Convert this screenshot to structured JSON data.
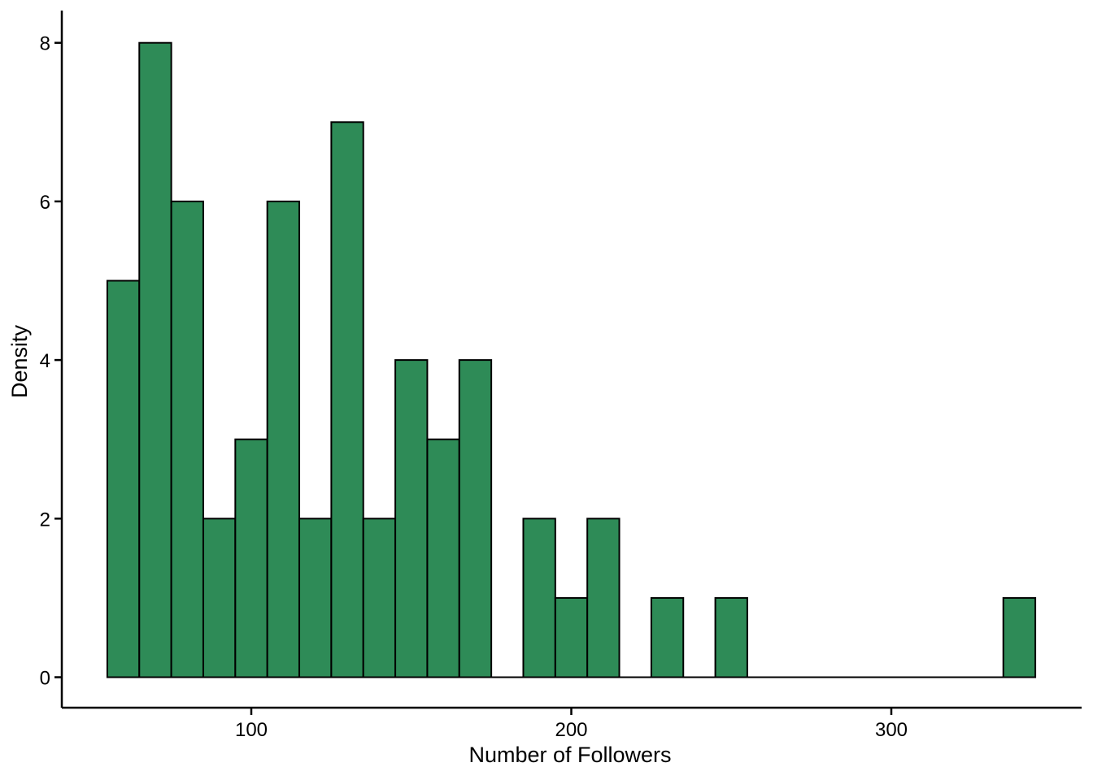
{
  "figure": {
    "background_color": "#ffffff"
  },
  "chart_data": {
    "type": "bar",
    "subtype": "histogram",
    "title": "",
    "xlabel": "Number of Followers",
    "ylabel": "Density",
    "bin_start": 55,
    "bin_width": 10,
    "bin_counts": [
      5,
      8,
      6,
      2,
      3,
      6,
      2,
      7,
      2,
      4,
      3,
      4,
      0,
      2,
      1,
      2,
      0,
      1,
      0,
      1,
      0,
      0,
      0,
      0,
      0,
      0,
      0,
      0,
      1
    ],
    "x_tick_labels": [
      "100",
      "200",
      "300"
    ],
    "x_tick_values": [
      100,
      200,
      300
    ],
    "y_tick_labels": [
      "0",
      "2",
      "4",
      "6",
      "8"
    ],
    "y_tick_values": [
      0,
      2,
      4,
      6,
      8
    ],
    "xlim": [
      55,
      345
    ],
    "ylim": [
      0,
      8
    ],
    "grid": false,
    "legend": "none",
    "bar_fill_color": "#2e8b57",
    "bar_border_color": "#000000",
    "axis_color": "#000000",
    "text_color": "#000000"
  }
}
